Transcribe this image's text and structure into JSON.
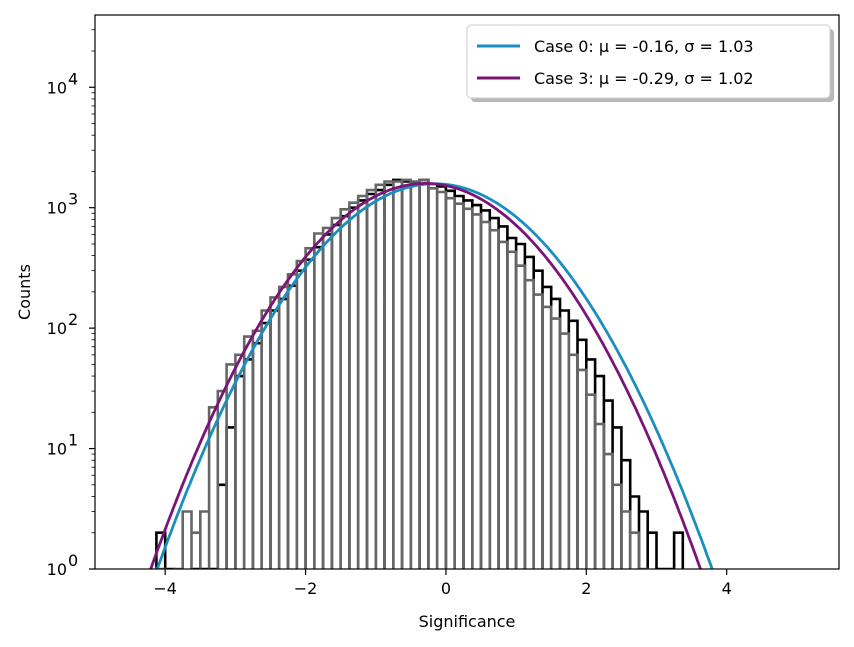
{
  "chart_data": {
    "type": "histogram",
    "xlabel": "Significance",
    "ylabel": "Counts",
    "xlim": [
      -5.0,
      5.6
    ],
    "ylim_log10": [
      0,
      4.6
    ],
    "y_scale": "log",
    "x_ticks": [
      -4,
      -2,
      0,
      2,
      4
    ],
    "x_tick_labels": [
      "−4",
      "−2",
      "0",
      "2",
      "4"
    ],
    "y_ticks": [
      {
        "exp": 0,
        "label": "10",
        "sup": "0"
      },
      {
        "exp": 1,
        "label": "10",
        "sup": "1"
      },
      {
        "exp": 2,
        "label": "10",
        "sup": "2"
      },
      {
        "exp": 3,
        "label": "10",
        "sup": "3"
      },
      {
        "exp": 4,
        "label": "10",
        "sup": "4"
      }
    ],
    "legend_position": "upper right",
    "bin_width": 0.125,
    "histograms": [
      {
        "color": "#000000",
        "bin_start": -4.125,
        "counts": [
          2,
          1,
          0,
          0,
          1,
          1,
          1,
          5,
          15,
          40,
          55,
          75,
          110,
          140,
          175,
          225,
          300,
          370,
          470,
          600,
          720,
          850,
          1000,
          1150,
          1300,
          1400,
          1550,
          1700,
          1650,
          1600,
          1700,
          1580,
          1500,
          1380,
          1250,
          1150,
          1050,
          950,
          820,
          700,
          560,
          500,
          390,
          300,
          220,
          175,
          140,
          115,
          80,
          55,
          40,
          25,
          15,
          8,
          4,
          3,
          2,
          1,
          1,
          2
        ]
      },
      {
        "color": "#666666",
        "bin_start": -4.125,
        "counts": [
          1,
          0,
          1,
          3,
          2,
          3,
          22,
          30,
          50,
          60,
          85,
          95,
          140,
          180,
          220,
          280,
          360,
          460,
          610,
          680,
          820,
          970,
          1100,
          1250,
          1400,
          1550,
          1650,
          1650,
          1700,
          1650,
          1700,
          1450,
          1350,
          1200,
          1080,
          980,
          880,
          760,
          650,
          520,
          430,
          330,
          250,
          190,
          150,
          120,
          90,
          60,
          45,
          28,
          16,
          9,
          5,
          3,
          2,
          1
        ]
      }
    ],
    "series": [
      {
        "name": "Case 0: μ = -0.16, σ = 1.03",
        "mu": -0.16,
        "sigma": 1.03,
        "amplitude": 1580,
        "color": "#1a8fbf"
      },
      {
        "name": "Case 3: μ = -0.29, σ = 1.02",
        "mu": -0.29,
        "sigma": 1.02,
        "amplitude": 1590,
        "color": "#7a1477"
      }
    ]
  }
}
